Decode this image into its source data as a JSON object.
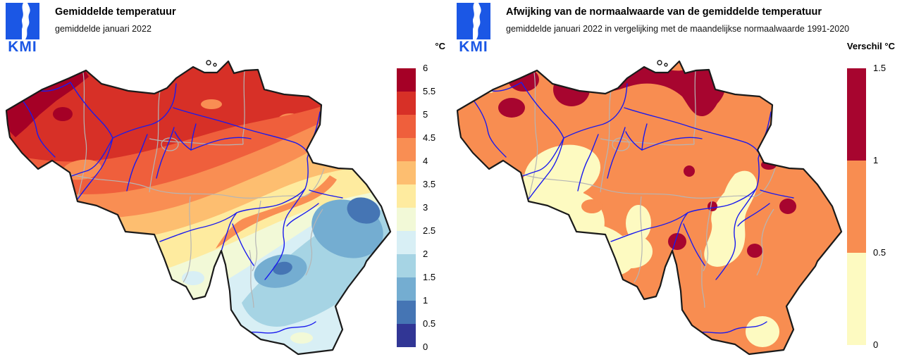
{
  "figure": {
    "map_colors": {
      "country_border": "#1a1a1a",
      "rivers": "#1a1aee",
      "province_borders": "#b5b5b5",
      "background": "#ffffff"
    },
    "panels": [
      {
        "logo_text": "KMI",
        "title": "Gemiddelde temperatuur",
        "subtitle": "gemiddelde januari 2022",
        "legend": {
          "unit_label": "°C",
          "ticks": [
            "6",
            "5.5",
            "5",
            "4.5",
            "4",
            "3.5",
            "3",
            "2.5",
            "2",
            "1.5",
            "1",
            "0.5",
            "0"
          ],
          "colors": [
            "#a50026",
            "#d73027",
            "#ef5f3c",
            "#f98e53",
            "#fdbe70",
            "#feeb9f",
            "#f2f9d7",
            "#d8eff5",
            "#a6d4e4",
            "#74add1",
            "#4575b4",
            "#313695"
          ]
        }
      },
      {
        "logo_text": "KMI",
        "title": "Afwijking van de normaalwaarde van de gemiddelde temperatuur",
        "subtitle": "gemiddelde januari 2022 in vergelijking met de maandelijkse normaalwaarde 1991-2020",
        "legend": {
          "unit_label": "Verschil °C",
          "ticks": [
            "1.5",
            "1",
            "0.5",
            "0"
          ],
          "colors": [
            "#a7052f",
            "#f88d51",
            "#fdfac1"
          ]
        }
      }
    ]
  }
}
